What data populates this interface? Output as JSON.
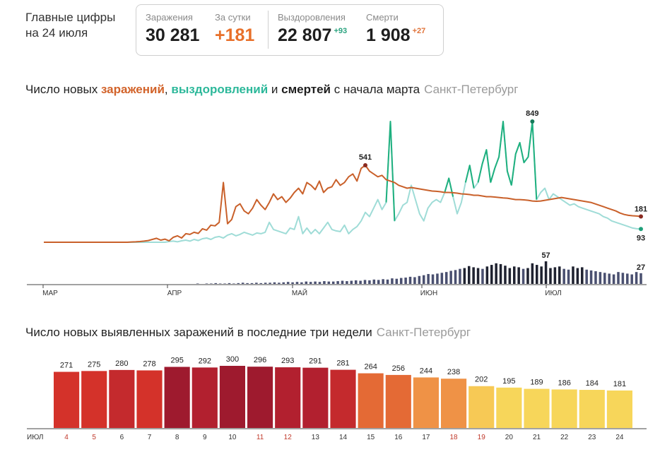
{
  "headline": {
    "line1": "Главные цифры",
    "line2": "на 24 июля"
  },
  "stats": {
    "infections": {
      "label": "Заражения",
      "value": "30 281"
    },
    "daily": {
      "label": "За сутки",
      "value": "+181"
    },
    "recovered": {
      "label": "Выздоровления",
      "value": "22 807",
      "delta": "+93"
    },
    "deaths": {
      "label": "Смерти",
      "value": "1 908",
      "delta": "+27"
    }
  },
  "chart1_title": {
    "prefix": "Число новых ",
    "infections": "заражений",
    "comma": ", ",
    "recoveries": "выздоровлений",
    "and": " и ",
    "deaths": "смертей",
    "suffix": " с начала марта",
    "city": "Санкт-Петербург"
  },
  "chart2_title": {
    "text": "Число новых выявленных заражений в последние три недели",
    "city": "Санкт-Петербург"
  },
  "colors": {
    "infections_line": "#c9602a",
    "recoveries_line": "#9fdcd7",
    "recoveries_peak": "#1fb07f",
    "deaths_bars": "#4a5070",
    "deaths_bars_dark": "#1f2230",
    "bar_palette": [
      "#d4322a",
      "#c42a2d",
      "#b2202f",
      "#9e1a2e",
      "#e0493a",
      "#e46a35",
      "#ef9246",
      "#f4b04b",
      "#f7c955",
      "#f7d65a"
    ]
  },
  "chart_data": [
    {
      "type": "line",
      "title": "Число новых заражений, выздоровлений и смертей с начала марта",
      "x_ticks": [
        "МАР",
        "АПР",
        "МАЙ",
        "ИЮН",
        "ИЮЛ"
      ],
      "series": [
        {
          "name": "заражений",
          "values": [
            0,
            0,
            0,
            0,
            0,
            0,
            0,
            0,
            0,
            0,
            0,
            0,
            0,
            0,
            0,
            0,
            0,
            0,
            0,
            0,
            0,
            2,
            3,
            5,
            8,
            12,
            20,
            28,
            15,
            22,
            10,
            35,
            45,
            30,
            60,
            55,
            70,
            62,
            95,
            85,
            120,
            115,
            140,
            420,
            130,
            160,
            250,
            270,
            220,
            200,
            240,
            300,
            260,
            230,
            280,
            340,
            300,
            320,
            280,
            310,
            350,
            380,
            340,
            420,
            400,
            370,
            430,
            350,
            380,
            390,
            440,
            400,
            420,
            460,
            480,
            430,
            520,
            541,
            500,
            480,
            460,
            470,
            440,
            430,
            420,
            400,
            390,
            380,
            385,
            380,
            375,
            370,
            365,
            360,
            358,
            355,
            350,
            350,
            348,
            345,
            340,
            338,
            335,
            330,
            330,
            325,
            320,
            320,
            318,
            315,
            312,
            310,
            305,
            300,
            300,
            298,
            295,
            290,
            288,
            290,
            295,
            300,
            305,
            310,
            315,
            310,
            305,
            300,
            295,
            290,
            285,
            280,
            270,
            260,
            250,
            240,
            230,
            220,
            205,
            195,
            189,
            186,
            184,
            181
          ],
          "last_label": "181",
          "peak_label": "541"
        },
        {
          "name": "выздоровлений",
          "values": [
            0,
            0,
            0,
            0,
            0,
            0,
            0,
            0,
            0,
            0,
            0,
            0,
            0,
            0,
            0,
            0,
            0,
            0,
            0,
            0,
            0,
            0,
            0,
            0,
            0,
            0,
            0,
            0,
            0,
            0,
            5,
            8,
            3,
            10,
            15,
            8,
            20,
            12,
            25,
            30,
            20,
            35,
            40,
            30,
            50,
            60,
            45,
            55,
            70,
            60,
            50,
            65,
            60,
            70,
            140,
            90,
            80,
            70,
            60,
            100,
            90,
            180,
            60,
            100,
            60,
            90,
            60,
            100,
            140,
            90,
            80,
            75,
            120,
            60,
            90,
            110,
            150,
            210,
            180,
            240,
            300,
            230,
            280,
            849,
            150,
            200,
            260,
            280,
            400,
            300,
            200,
            150,
            240,
            280,
            300,
            280,
            350,
            450,
            320,
            200,
            280,
            420,
            540,
            380,
            420,
            550,
            650,
            420,
            520,
            600,
            849,
            500,
            400,
            620,
            700,
            560,
            600,
            849,
            300,
            350,
            380,
            300,
            340,
            320,
            300,
            280,
            260,
            270,
            250,
            240,
            230,
            220,
            210,
            200,
            180,
            170,
            150,
            140,
            130,
            120,
            110,
            100,
            95,
            93
          ],
          "last_label": "93",
          "peak_label": "849"
        },
        {
          "name": "смертей",
          "values": [
            0,
            0,
            0,
            0,
            0,
            0,
            0,
            0,
            0,
            0,
            0,
            0,
            0,
            0,
            0,
            0,
            0,
            0,
            0,
            0,
            0,
            0,
            0,
            0,
            0,
            0,
            0,
            0,
            0,
            0,
            0,
            0,
            0,
            0,
            1,
            0,
            1,
            1,
            2,
            1,
            1,
            2,
            1,
            2,
            3,
            2,
            2,
            3,
            2,
            3,
            3,
            4,
            3,
            4,
            5,
            4,
            5,
            4,
            6,
            5,
            6,
            5,
            7,
            6,
            6,
            7,
            8,
            7,
            8,
            9,
            8,
            10,
            9,
            11,
            10,
            12,
            11,
            14,
            13,
            15,
            16,
            18,
            17,
            20,
            22,
            25,
            24,
            26,
            28,
            30,
            33,
            35,
            38,
            40,
            45,
            42,
            40,
            38,
            44,
            48,
            52,
            50,
            46,
            40,
            44,
            42,
            38,
            40,
            52,
            48,
            44,
            57,
            40,
            42,
            44,
            38,
            36,
            44,
            40,
            42,
            36,
            34,
            32,
            30,
            28,
            26,
            24,
            30,
            28,
            26,
            24,
            30,
            27
          ],
          "last_label": "27",
          "peak_label": "57"
        }
      ]
    },
    {
      "type": "bar",
      "title": "Число новых выявленных заражений в последние три недели",
      "month_label": "ИЮЛ",
      "categories": [
        "4",
        "5",
        "6",
        "7",
        "8",
        "9",
        "10",
        "11",
        "12",
        "13",
        "14",
        "15",
        "16",
        "17",
        "18",
        "19",
        "20",
        "21",
        "22",
        "23",
        "24"
      ],
      "weekend_days": [
        "4",
        "5",
        "11",
        "12",
        "18",
        "19"
      ],
      "values": [
        271,
        275,
        280,
        278,
        295,
        292,
        300,
        296,
        293,
        291,
        281,
        264,
        256,
        244,
        238,
        202,
        195,
        189,
        186,
        184,
        181
      ]
    }
  ]
}
